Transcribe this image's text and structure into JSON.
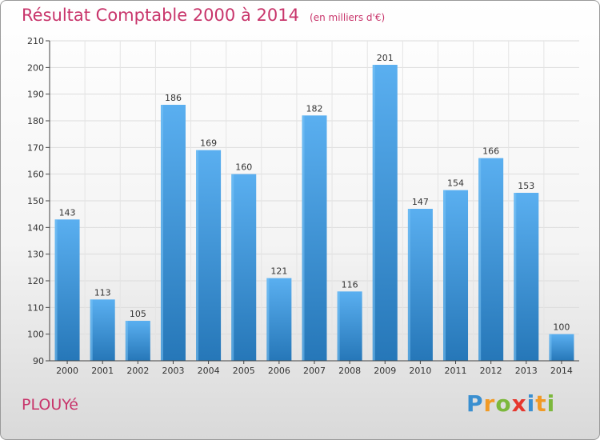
{
  "header": {
    "title": "Résultat Comptable 2000 à 2014",
    "subtitle": "(en milliers d'€)"
  },
  "footer": {
    "commune": "PLOUYé",
    "logo": {
      "letters": [
        "P",
        "r",
        "o",
        "x",
        "i",
        "t",
        "i"
      ],
      "colors": [
        "#3a8fd0",
        "#f19a25",
        "#7cb83c",
        "#e6372e",
        "#3a8fd0",
        "#f19a25",
        "#7cb83c"
      ]
    }
  },
  "chart_data": {
    "type": "bar",
    "categories": [
      "2000",
      "2001",
      "2002",
      "2003",
      "2004",
      "2005",
      "2006",
      "2007",
      "2008",
      "2009",
      "2010",
      "2011",
      "2012",
      "2013",
      "2014"
    ],
    "values": [
      143,
      113,
      105,
      186,
      169,
      160,
      121,
      182,
      116,
      201,
      147,
      154,
      166,
      153,
      100
    ],
    "ylim": [
      90,
      210
    ],
    "yticks": [
      90,
      100,
      110,
      120,
      130,
      140,
      150,
      160,
      170,
      180,
      190,
      200,
      210
    ],
    "grid": true,
    "bar_color_top": "#5aaff0",
    "bar_color_bottom": "#2677b8"
  }
}
